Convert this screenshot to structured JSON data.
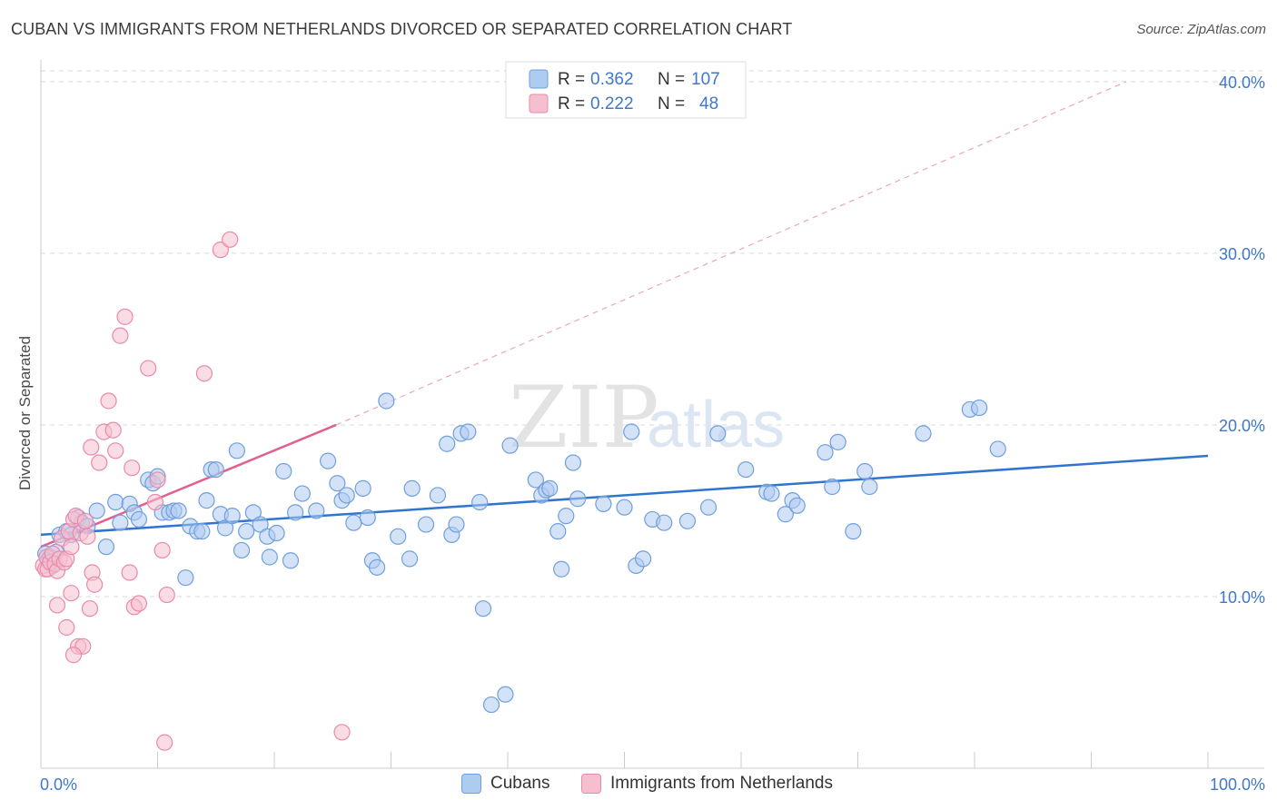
{
  "title": "CUBAN VS IMMIGRANTS FROM NETHERLANDS DIVORCED OR SEPARATED CORRELATION CHART",
  "source": "Source: ZipAtlas.com",
  "watermark": {
    "zip": "ZIP",
    "atlas": "atlas"
  },
  "legend_top": {
    "rows": [
      {
        "r_label": "R = ",
        "r_value": "0.362",
        "n_label": "N = ",
        "n_value": "107"
      },
      {
        "r_label": "R = ",
        "r_value": "0.222",
        "n_label": "N = ",
        "n_value": "48"
      }
    ]
  },
  "legend_bottom": [
    "Cubans",
    "Immigrants from Netherlands"
  ],
  "colors": {
    "cubans_fill": "#aecbf0",
    "cubans_stroke": "#6f9fde",
    "cubans_line": "#2f74cf",
    "neth_fill": "#f6bfd0",
    "neth_stroke": "#e98aaa",
    "neth_line": "#e0608f",
    "grid": "#d9d9d9",
    "axis_text": "#3f78c9"
  },
  "chart_data": {
    "type": "scatter",
    "ylabel": "Divorced or Separated",
    "xlabel": "",
    "x_tick_labels": [
      "0.0%",
      "100.0%"
    ],
    "y_tick_labels": [
      "10.0%",
      "20.0%",
      "30.0%",
      "40.0%"
    ],
    "y_ticks": [
      10,
      20,
      30,
      40
    ],
    "xlim": [
      0,
      100
    ],
    "ylim": [
      0,
      41
    ],
    "grid": true,
    "legend_placement": "top-center",
    "series": [
      {
        "name": "Cubans",
        "r": 0.362,
        "n": 107,
        "trend": {
          "x": [
            0,
            100
          ],
          "y": [
            13.6,
            18.2
          ]
        },
        "points": [
          [
            0.4,
            12.5
          ],
          [
            0.6,
            12.1
          ],
          [
            0.8,
            12.3
          ],
          [
            1.0,
            11.8
          ],
          [
            1.3,
            12.6
          ],
          [
            1.6,
            13.6
          ],
          [
            2.2,
            13.8
          ],
          [
            2.6,
            13.6
          ],
          [
            3.2,
            14.6
          ],
          [
            3.5,
            14.3
          ],
          [
            4.0,
            14.1
          ],
          [
            4.8,
            15.0
          ],
          [
            5.6,
            12.9
          ],
          [
            6.4,
            15.5
          ],
          [
            6.8,
            14.3
          ],
          [
            7.6,
            15.4
          ],
          [
            8.0,
            14.9
          ],
          [
            8.4,
            14.5
          ],
          [
            9.2,
            16.8
          ],
          [
            9.6,
            16.6
          ],
          [
            10.0,
            17.0
          ],
          [
            10.4,
            14.9
          ],
          [
            11.0,
            14.9
          ],
          [
            11.4,
            15.0
          ],
          [
            11.8,
            15.0
          ],
          [
            12.4,
            11.1
          ],
          [
            12.8,
            14.1
          ],
          [
            13.4,
            13.8
          ],
          [
            13.8,
            13.8
          ],
          [
            14.2,
            15.6
          ],
          [
            14.6,
            17.4
          ],
          [
            15.0,
            17.4
          ],
          [
            15.4,
            14.8
          ],
          [
            15.8,
            14.0
          ],
          [
            16.4,
            14.7
          ],
          [
            16.8,
            18.5
          ],
          [
            17.2,
            12.7
          ],
          [
            17.6,
            13.8
          ],
          [
            18.2,
            14.9
          ],
          [
            18.8,
            14.2
          ],
          [
            19.4,
            13.5
          ],
          [
            19.6,
            12.3
          ],
          [
            20.2,
            13.7
          ],
          [
            20.8,
            17.3
          ],
          [
            21.4,
            12.1
          ],
          [
            21.8,
            14.9
          ],
          [
            22.4,
            16.0
          ],
          [
            23.6,
            15.0
          ],
          [
            24.6,
            17.9
          ],
          [
            25.4,
            16.6
          ],
          [
            25.8,
            15.6
          ],
          [
            26.2,
            15.9
          ],
          [
            26.8,
            14.3
          ],
          [
            27.6,
            16.3
          ],
          [
            28.0,
            14.6
          ],
          [
            28.4,
            12.1
          ],
          [
            28.8,
            11.7
          ],
          [
            29.6,
            21.4
          ],
          [
            30.6,
            13.5
          ],
          [
            31.6,
            12.2
          ],
          [
            31.8,
            16.3
          ],
          [
            33.0,
            14.2
          ],
          [
            34.0,
            15.9
          ],
          [
            34.8,
            18.9
          ],
          [
            35.2,
            13.6
          ],
          [
            35.6,
            14.2
          ],
          [
            36.0,
            19.5
          ],
          [
            36.6,
            19.6
          ],
          [
            37.6,
            15.5
          ],
          [
            37.9,
            9.3
          ],
          [
            38.6,
            3.7
          ],
          [
            39.8,
            4.3
          ],
          [
            40.2,
            18.8
          ],
          [
            42.4,
            16.8
          ],
          [
            42.9,
            15.9
          ],
          [
            43.3,
            16.2
          ],
          [
            43.6,
            16.3
          ],
          [
            44.3,
            13.8
          ],
          [
            44.6,
            11.6
          ],
          [
            45.0,
            14.7
          ],
          [
            45.6,
            17.8
          ],
          [
            46.0,
            15.7
          ],
          [
            48.2,
            15.4
          ],
          [
            50.0,
            15.2
          ],
          [
            50.6,
            19.6
          ],
          [
            51.0,
            11.8
          ],
          [
            51.6,
            12.2
          ],
          [
            52.4,
            14.5
          ],
          [
            53.4,
            14.3
          ],
          [
            55.4,
            14.4
          ],
          [
            57.2,
            15.2
          ],
          [
            58.0,
            19.5
          ],
          [
            60.4,
            17.4
          ],
          [
            62.2,
            16.1
          ],
          [
            62.6,
            16.0
          ],
          [
            63.8,
            14.8
          ],
          [
            64.4,
            15.6
          ],
          [
            64.8,
            15.3
          ],
          [
            67.2,
            18.4
          ],
          [
            67.8,
            16.4
          ],
          [
            68.3,
            19.0
          ],
          [
            69.6,
            13.8
          ],
          [
            70.6,
            17.3
          ],
          [
            71.0,
            16.4
          ],
          [
            75.6,
            19.5
          ],
          [
            79.6,
            20.9
          ],
          [
            80.4,
            21.0
          ],
          [
            82.0,
            18.6
          ]
        ]
      },
      {
        "name": "Immigrants from Netherlands",
        "r": 0.222,
        "n": 48,
        "trend": {
          "x": [
            0,
            25.3
          ],
          "y": [
            12.9,
            20.0
          ]
        },
        "trend_extension": {
          "x": [
            25.3,
            93.0
          ],
          "y": [
            20.0,
            40.0
          ]
        },
        "points": [
          [
            0.2,
            11.8
          ],
          [
            0.4,
            11.6
          ],
          [
            0.5,
            12.3
          ],
          [
            0.6,
            11.6
          ],
          [
            0.8,
            12.0
          ],
          [
            1.0,
            12.5
          ],
          [
            1.2,
            11.9
          ],
          [
            1.4,
            11.5
          ],
          [
            1.6,
            12.2
          ],
          [
            1.8,
            13.4
          ],
          [
            2.0,
            12.0
          ],
          [
            2.2,
            12.2
          ],
          [
            2.4,
            13.8
          ],
          [
            2.6,
            12.9
          ],
          [
            2.8,
            14.5
          ],
          [
            3.0,
            14.7
          ],
          [
            3.4,
            13.7
          ],
          [
            3.8,
            14.4
          ],
          [
            4.0,
            13.5
          ],
          [
            4.3,
            18.7
          ],
          [
            4.4,
            11.4
          ],
          [
            4.6,
            10.7
          ],
          [
            1.4,
            9.5
          ],
          [
            2.2,
            8.2
          ],
          [
            3.2,
            7.1
          ],
          [
            3.6,
            7.1
          ],
          [
            2.8,
            6.6
          ],
          [
            4.2,
            9.3
          ],
          [
            2.6,
            10.2
          ],
          [
            5.0,
            17.8
          ],
          [
            5.4,
            19.6
          ],
          [
            5.8,
            21.4
          ],
          [
            6.2,
            19.7
          ],
          [
            6.4,
            18.5
          ],
          [
            6.8,
            25.2
          ],
          [
            7.2,
            26.3
          ],
          [
            7.6,
            11.4
          ],
          [
            7.8,
            17.5
          ],
          [
            8.0,
            9.4
          ],
          [
            8.4,
            9.6
          ],
          [
            9.2,
            23.3
          ],
          [
            9.8,
            15.5
          ],
          [
            10.0,
            16.8
          ],
          [
            10.4,
            12.7
          ],
          [
            10.8,
            10.1
          ],
          [
            14.0,
            23.0
          ],
          [
            15.4,
            30.2
          ],
          [
            16.2,
            30.8
          ],
          [
            25.8,
            2.1
          ],
          [
            10.6,
            1.5
          ]
        ]
      }
    ]
  }
}
